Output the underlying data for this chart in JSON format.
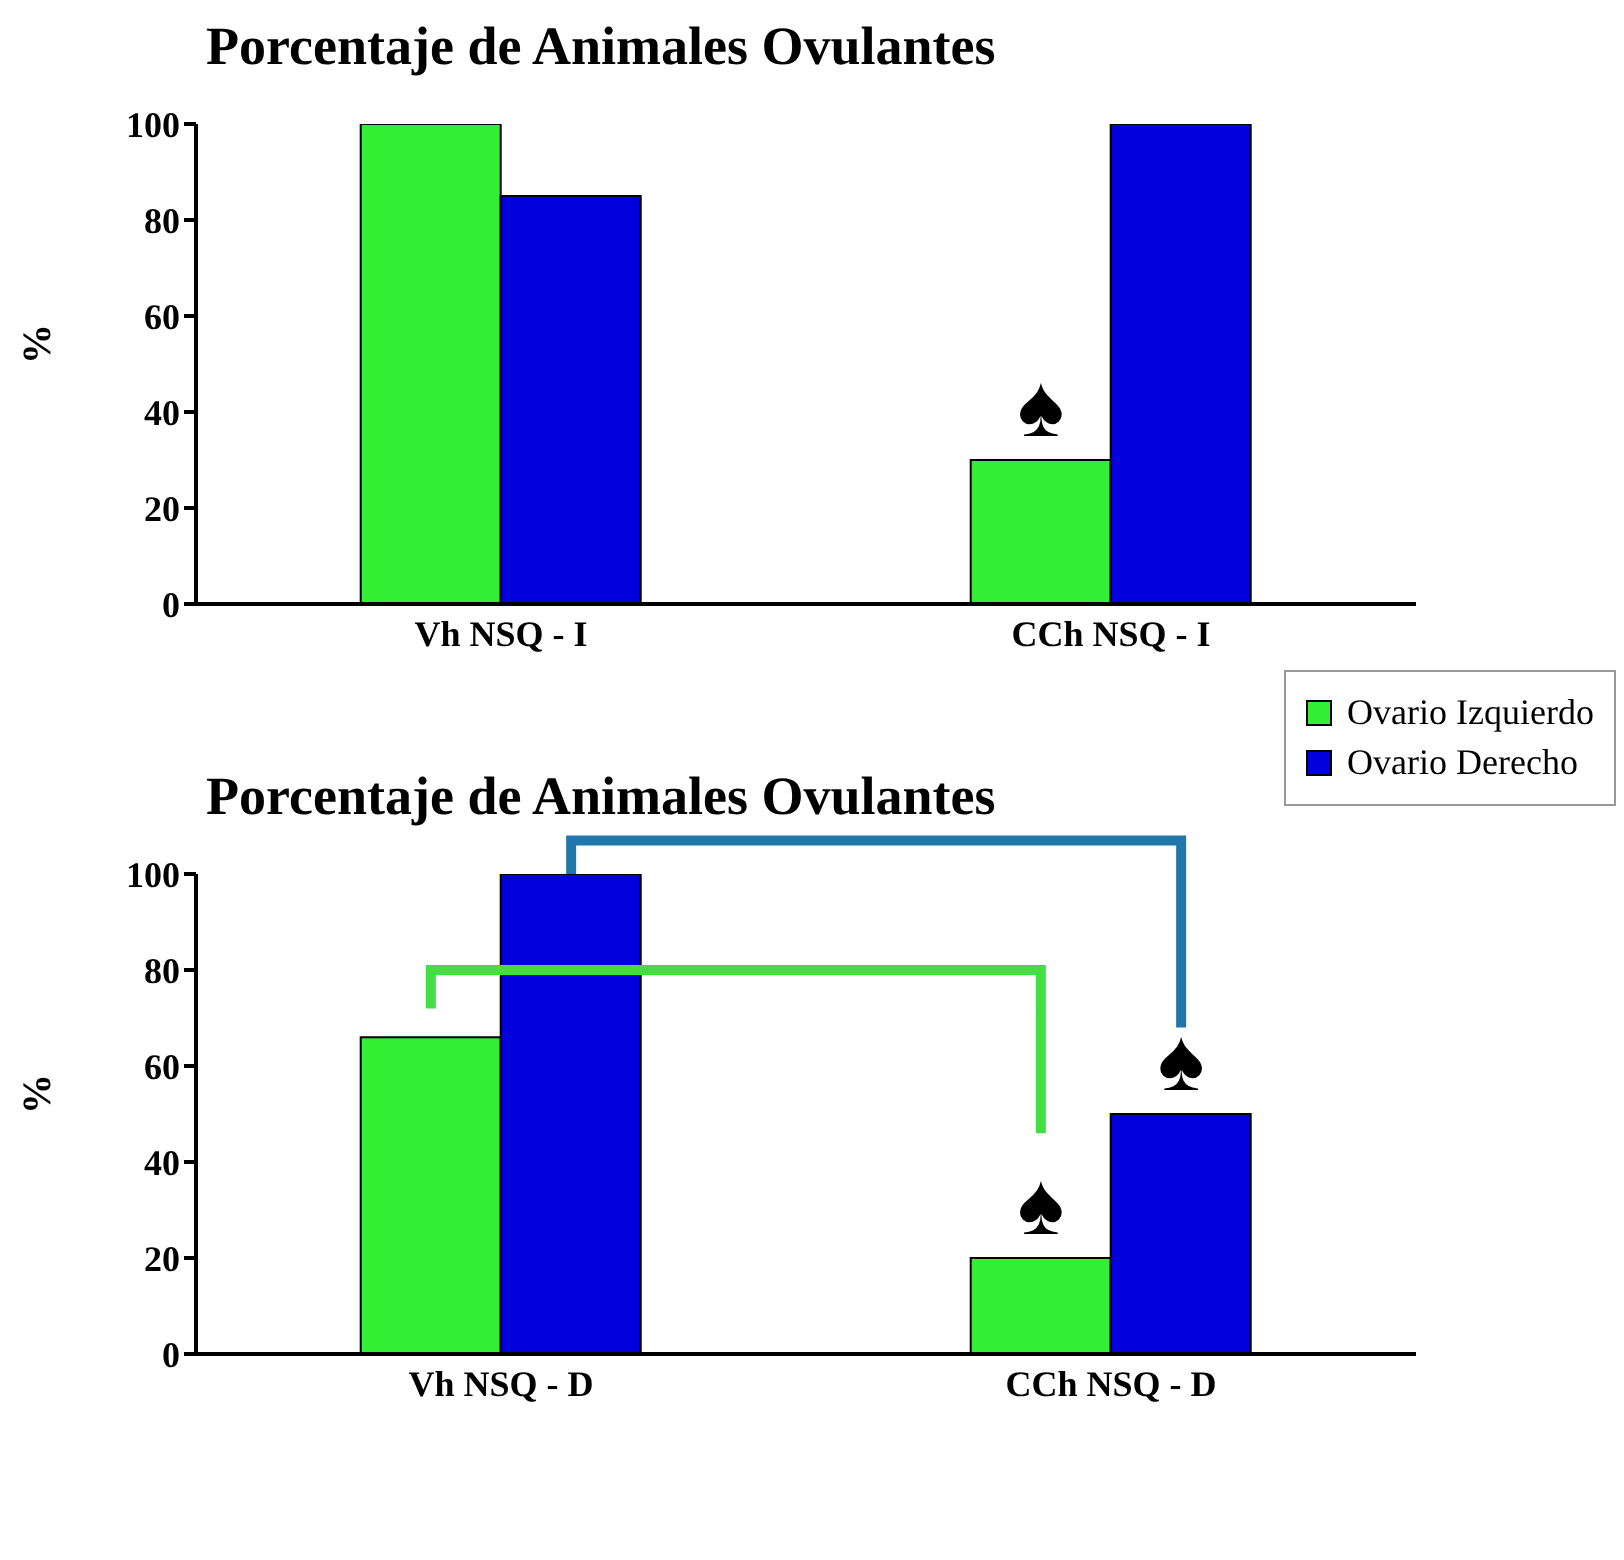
{
  "chart_data": [
    {
      "type": "bar",
      "title": "Porcentaje de Animales  Ovulantes",
      "ylabel": "%",
      "categories": [
        "Vh NSQ - I",
        "CCh NSQ - I"
      ],
      "series": [
        {
          "color": "#33ee33",
          "values": [
            100,
            30
          ]
        },
        {
          "color": "#0000dd",
          "values": [
            85,
            100
          ]
        }
      ],
      "ylim": [
        0,
        100
      ],
      "yticks": [
        0,
        20,
        40,
        60,
        80,
        100
      ],
      "grid": false,
      "legend": false,
      "annotations": [
        {
          "text": "♠",
          "x": "CCh NSQ - I",
          "y": 30
        }
      ]
    },
    {
      "type": "bar",
      "title": "Porcentaje de Animales  Ovulantes",
      "ylabel": "%",
      "categories": [
        "Vh NSQ - D",
        "CCh NSQ - D"
      ],
      "series": [
        {
          "name": "Ovario  Izquierdo",
          "color": "#33ee33",
          "values": [
            66,
            20
          ]
        },
        {
          "name": "Ovario  Derecho",
          "color": "#0000dd",
          "values": [
            100,
            50
          ]
        }
      ],
      "ylim": [
        0,
        100
      ],
      "yticks": [
        0,
        20,
        40,
        60,
        80,
        100
      ],
      "grid": false,
      "legend": "top right",
      "annotations": [
        {
          "text": "♠",
          "x": "CCh NSQ - D",
          "y": 20
        },
        {
          "text": "♠",
          "x": "CCh NSQ - D",
          "y": 50
        }
      ]
    }
  ]
}
